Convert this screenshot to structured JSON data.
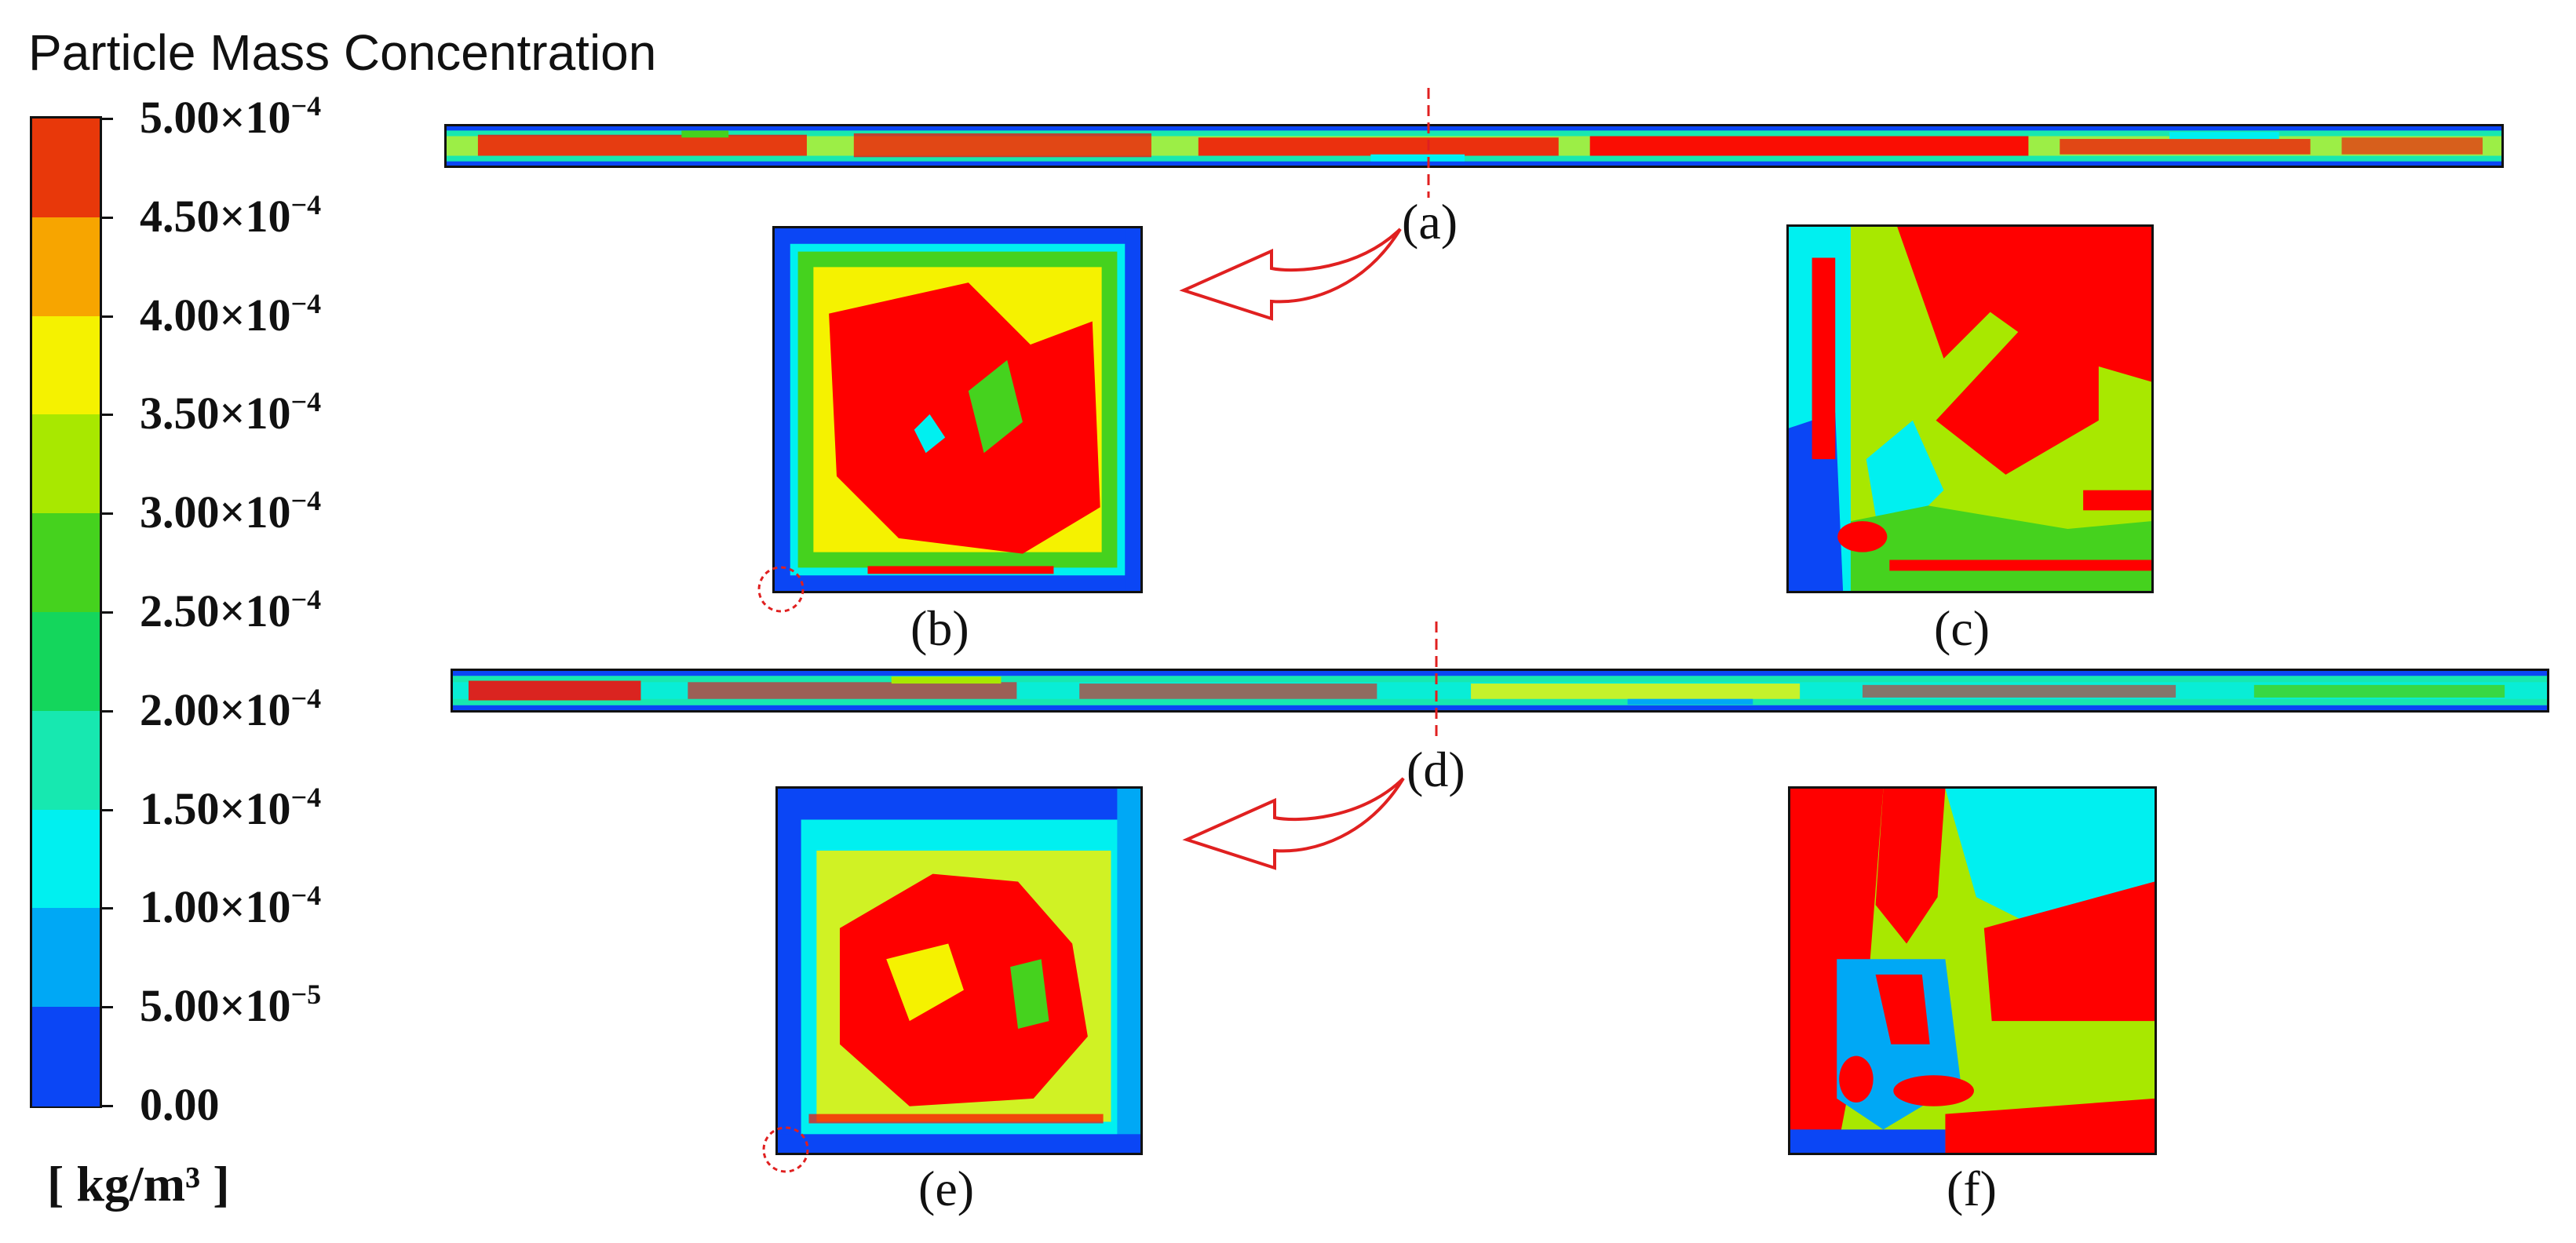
{
  "legend": {
    "title": "Particle Mass Concentration",
    "unit": "[ kg/m³ ]",
    "levels": [
      {
        "mantissa": "5.00×10",
        "exp": "−4"
      },
      {
        "mantissa": "4.50×10",
        "exp": "−4"
      },
      {
        "mantissa": "4.00×10",
        "exp": "−4"
      },
      {
        "mantissa": "3.50×10",
        "exp": "−4"
      },
      {
        "mantissa": "3.00×10",
        "exp": "−4"
      },
      {
        "mantissa": "2.50×10",
        "exp": "−4"
      },
      {
        "mantissa": "2.00×10",
        "exp": "−4"
      },
      {
        "mantissa": "1.50×10",
        "exp": "−4"
      },
      {
        "mantissa": "1.00×10",
        "exp": "−4"
      },
      {
        "mantissa": "5.00×10",
        "exp": "−5"
      },
      {
        "mantissa": "0.00",
        "exp": ""
      }
    ],
    "band_colors": [
      "#e8380a",
      "#f7a500",
      "#f5f200",
      "#a8e800",
      "#45d21e",
      "#14d65c",
      "#17e8b0",
      "#00f0f0",
      "#00a8f5",
      "#0b46f5"
    ]
  },
  "panels": {
    "a": "(a)",
    "b": "(b)",
    "c": "(c)",
    "d": "(d)",
    "e": "(e)",
    "f": "(f)"
  },
  "colors": {
    "high": "#ff0000",
    "mid_high": "#f5f200",
    "mid": "#45d21e",
    "mid_low": "#00f0f0",
    "low": "#0b46f5",
    "annotation": "#e02020"
  }
}
